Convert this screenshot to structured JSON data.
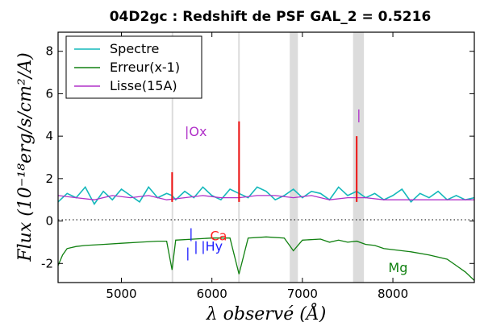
{
  "chart_data": {
    "type": "line",
    "title": "04D2gc : Redshift de PSF GAL_2 = 0.5216",
    "xlabel": "λ observé (Å)",
    "ylabel": "Flux (10⁻¹⁸erg/s/cm²/A)",
    "xlim": [
      4300,
      8900
    ],
    "ylim": [
      -2.9,
      8.9
    ],
    "xticks": [
      5000,
      6000,
      7000,
      8000
    ],
    "xtick_labels": [
      "5000",
      "6000",
      "7000",
      "8000"
    ],
    "yticks": [
      -2,
      0,
      2,
      4,
      6,
      8
    ],
    "ytick_labels": [
      "-2",
      "0",
      "2",
      "4",
      "6",
      "8"
    ],
    "legend_position": "top-left",
    "grid": false,
    "zero_line": true,
    "series": [
      {
        "name": "Spectre",
        "color": "#14b8bb",
        "x": [
          4300,
          4400,
          4500,
          4600,
          4700,
          4800,
          4900,
          5000,
          5100,
          5200,
          5300,
          5400,
          5500,
          5560,
          5600,
          5700,
          5800,
          5900,
          6000,
          6100,
          6200,
          6300,
          6400,
          6500,
          6600,
          6700,
          6800,
          6900,
          7000,
          7100,
          7200,
          7300,
          7400,
          7500,
          7600,
          7700,
          7800,
          7900,
          8000,
          8100,
          8200,
          8300,
          8400,
          8500,
          8600,
          8700,
          8800,
          8900
        ],
        "y": [
          0.9,
          1.3,
          1.1,
          1.6,
          0.8,
          1.4,
          1.0,
          1.5,
          1.2,
          0.9,
          1.6,
          1.1,
          1.3,
          1.2,
          1.0,
          1.4,
          1.1,
          1.6,
          1.2,
          1.0,
          1.5,
          1.3,
          1.1,
          1.6,
          1.4,
          1.0,
          1.2,
          1.5,
          1.1,
          1.4,
          1.3,
          1.0,
          1.6,
          1.2,
          1.4,
          1.1,
          1.3,
          1.0,
          1.2,
          1.5,
          0.9,
          1.3,
          1.1,
          1.4,
          1.0,
          1.2,
          1.0,
          1.1
        ]
      },
      {
        "name": "Erreur(x-1)",
        "color": "#108010",
        "x": [
          4300,
          4350,
          4400,
          4500,
          4600,
          4800,
          5000,
          5200,
          5400,
          5500,
          5560,
          5600,
          5800,
          6000,
          6200,
          6300,
          6400,
          6600,
          6800,
          6900,
          7000,
          7200,
          7300,
          7400,
          7500,
          7600,
          7700,
          7800,
          7900,
          8000,
          8200,
          8400,
          8600,
          8700,
          8800,
          8900
        ],
        "y": [
          -2.1,
          -1.6,
          -1.3,
          -1.2,
          -1.15,
          -1.1,
          -1.05,
          -1.0,
          -0.95,
          -0.95,
          -2.3,
          -0.9,
          -0.85,
          -0.8,
          -0.8,
          -2.5,
          -0.8,
          -0.75,
          -0.8,
          -1.4,
          -0.9,
          -0.85,
          -1.0,
          -0.9,
          -1.0,
          -0.95,
          -1.1,
          -1.15,
          -1.3,
          -1.35,
          -1.45,
          -1.6,
          -1.8,
          -2.1,
          -2.4,
          -2.8
        ]
      },
      {
        "name": "Lisse(15A)",
        "color": "#b030c8",
        "x": [
          4300,
          4500,
          4700,
          4900,
          5100,
          5300,
          5500,
          5700,
          5900,
          6100,
          6300,
          6500,
          6700,
          6900,
          7100,
          7300,
          7500,
          7700,
          7900,
          8100,
          8300,
          8500,
          8700,
          8900
        ],
        "y": [
          1.2,
          1.1,
          1.0,
          1.2,
          1.1,
          1.2,
          1.0,
          1.1,
          1.2,
          1.1,
          1.1,
          1.2,
          1.2,
          1.1,
          1.2,
          1.0,
          1.1,
          1.1,
          1.0,
          1.0,
          1.0,
          1.0,
          1.0,
          1.0
        ]
      }
    ],
    "red_spikes": [
      {
        "x": 5560,
        "y": 2.3
      },
      {
        "x": 6300,
        "y": 4.7
      },
      {
        "x": 7600,
        "y": 4.0
      }
    ],
    "grey_bands": [
      {
        "x0": 5555,
        "x1": 5570
      },
      {
        "x0": 6290,
        "x1": 6305
      },
      {
        "x0": 6860,
        "x1": 6950
      },
      {
        "x0": 7560,
        "x1": 7680
      }
    ],
    "annotations": [
      {
        "text": "|Ox",
        "x": 5700,
        "y": 4.0,
        "color": "#b030c8"
      },
      {
        "text": "|",
        "x": 7600,
        "y": 4.8,
        "color": "#b030c8"
      },
      {
        "text": "|",
        "x": 5745,
        "y": -0.8,
        "color": "#2020ff"
      },
      {
        "text": "|",
        "x": 5710,
        "y": -1.7,
        "color": "#2020ff"
      },
      {
        "text": "|",
        "x": 5800,
        "y": -1.4,
        "color": "#2020ff"
      },
      {
        "text": "|Hy",
        "x": 5880,
        "y": -1.4,
        "color": "#2020ff"
      },
      {
        "text": "Ca",
        "x": 5980,
        "y": -0.9,
        "color": "#ff2020"
      },
      {
        "text": "Mg",
        "x": 7950,
        "y": -2.4,
        "color": "#108010"
      }
    ]
  }
}
